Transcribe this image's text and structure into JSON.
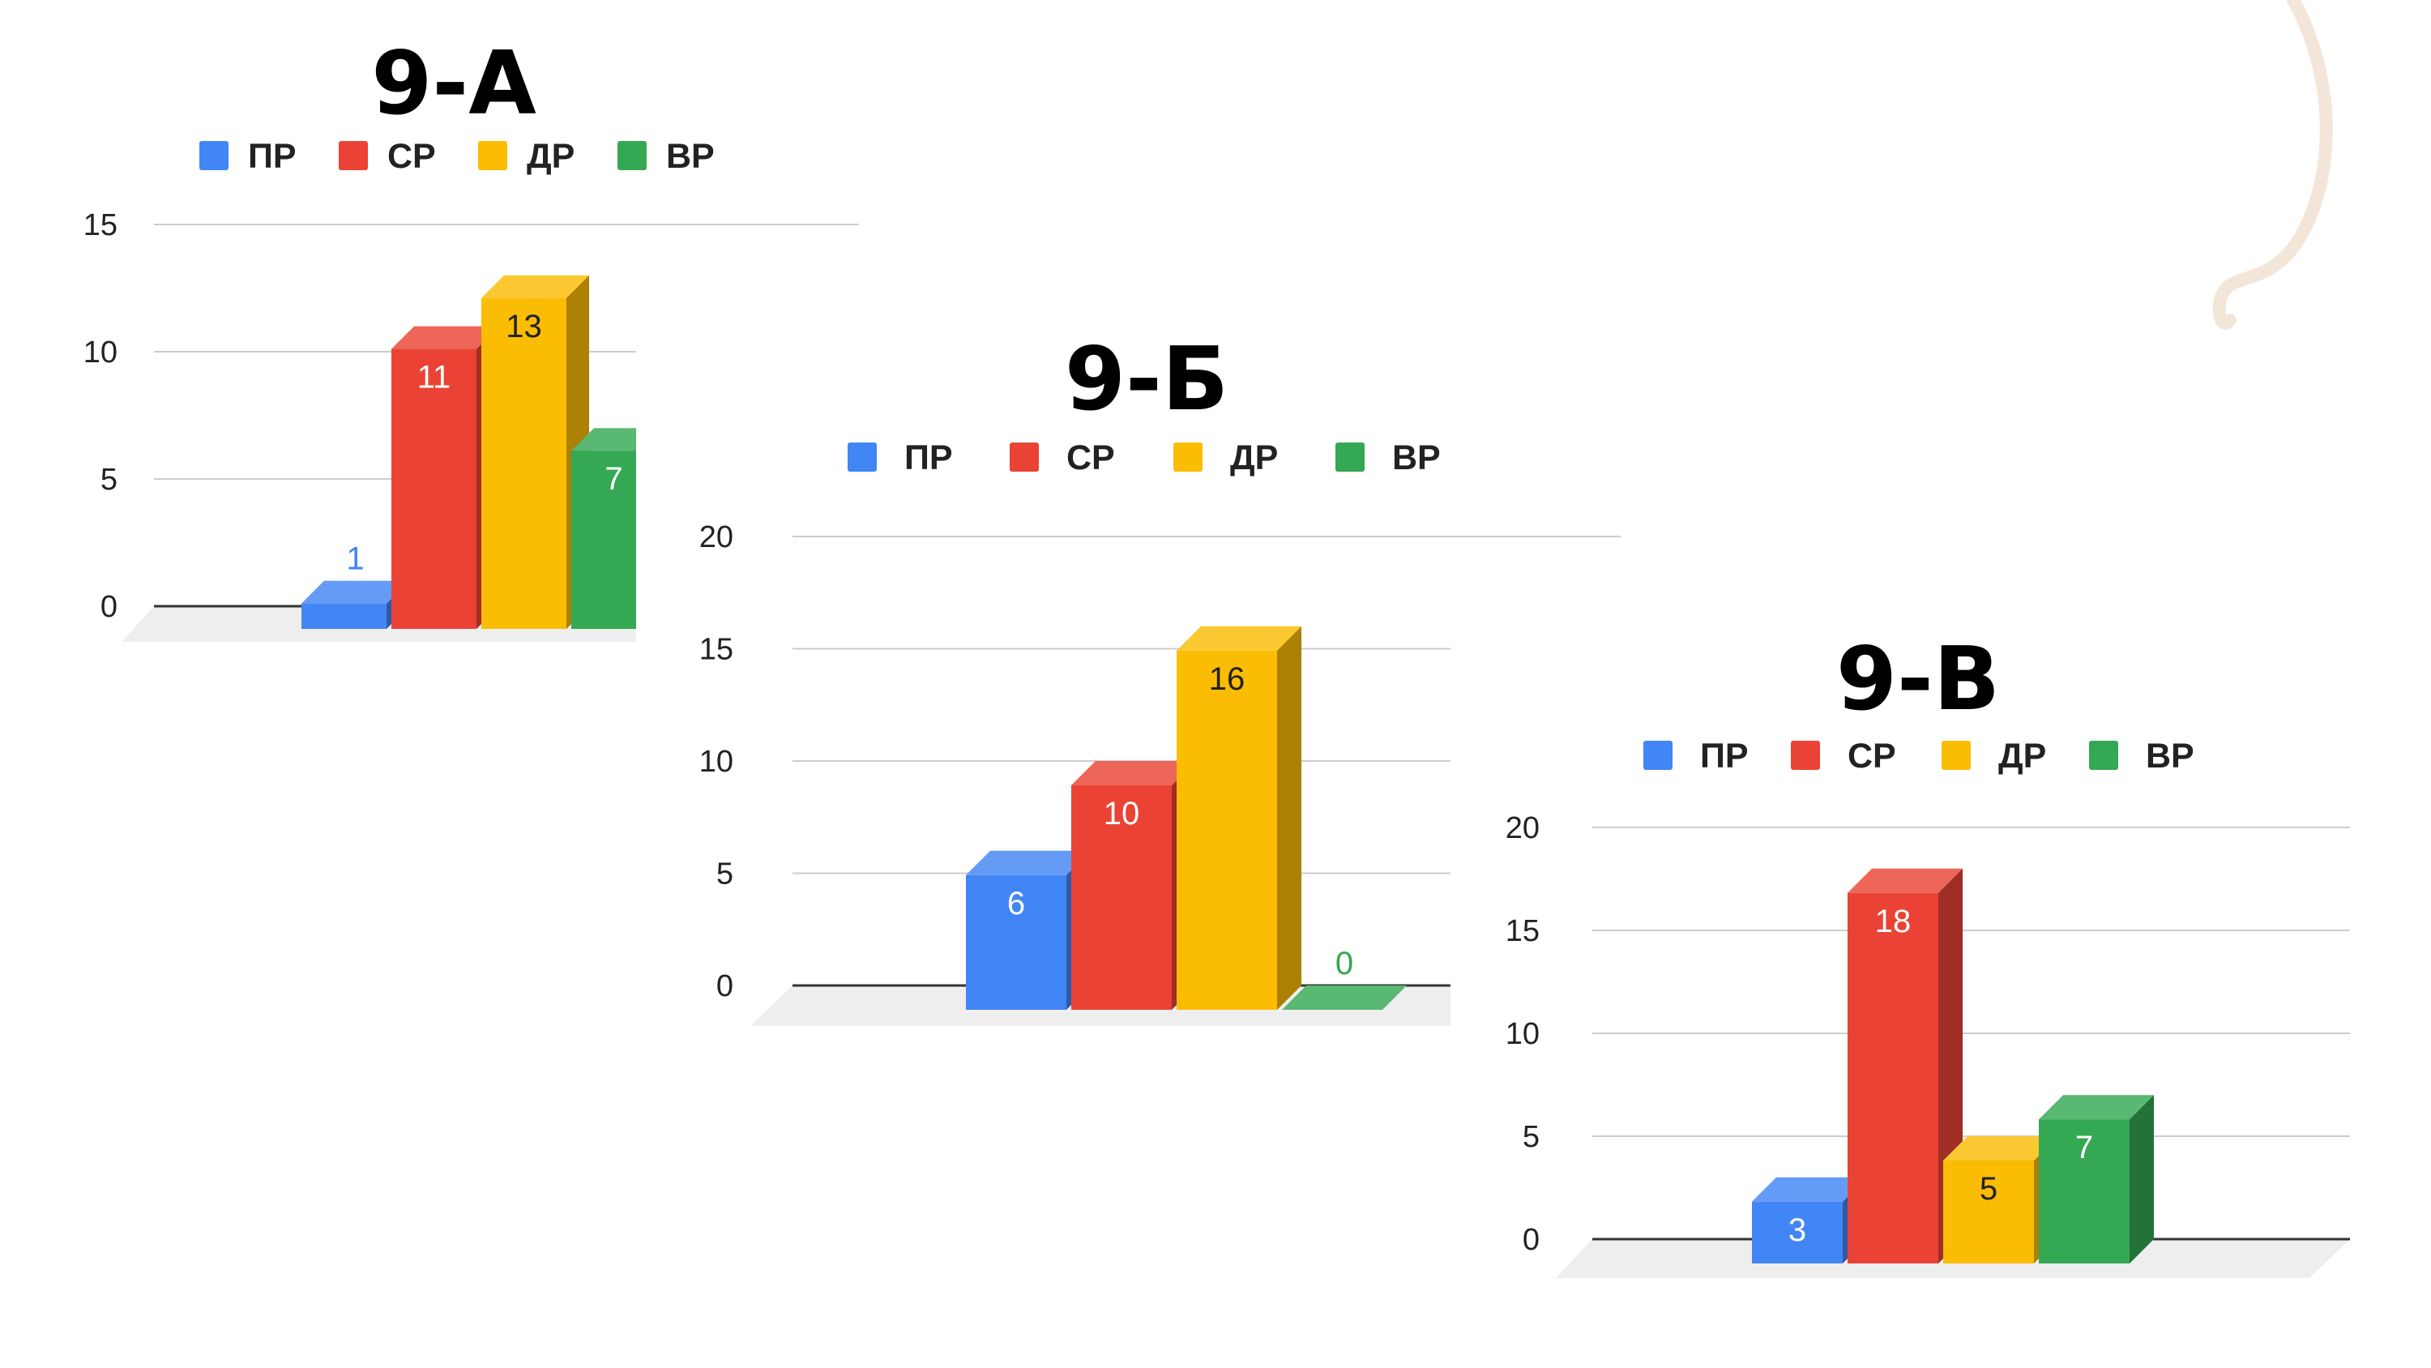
{
  "chart_data": [
    {
      "type": "bar",
      "title": "9-А",
      "categories": [
        ""
      ],
      "series": [
        {
          "name": "ПР",
          "values": [
            1
          ]
        },
        {
          "name": "СР",
          "values": [
            11
          ]
        },
        {
          "name": "ДР",
          "values": [
            13
          ]
        },
        {
          "name": "ВР",
          "values": [
            7
          ]
        }
      ],
      "yticks": [
        "0",
        "5",
        "10",
        "15"
      ],
      "ylim": [
        0,
        15
      ],
      "legend_position": "top",
      "grid": true,
      "style": "3d"
    },
    {
      "type": "bar",
      "title": "9-Б",
      "categories": [
        ""
      ],
      "series": [
        {
          "name": "ПР",
          "values": [
            6
          ]
        },
        {
          "name": "СР",
          "values": [
            10
          ]
        },
        {
          "name": "ДР",
          "values": [
            16
          ]
        },
        {
          "name": "ВР",
          "values": [
            0
          ]
        }
      ],
      "yticks": [
        "0",
        "5",
        "10",
        "15",
        "20"
      ],
      "ylim": [
        0,
        20
      ],
      "legend_position": "top",
      "grid": true,
      "style": "3d"
    },
    {
      "type": "bar",
      "title": "9-В",
      "categories": [
        ""
      ],
      "series": [
        {
          "name": "ПР",
          "values": [
            3
          ]
        },
        {
          "name": "СР",
          "values": [
            18
          ]
        },
        {
          "name": "ДР",
          "values": [
            5
          ]
        },
        {
          "name": "ВР",
          "values": [
            7
          ]
        }
      ],
      "yticks": [
        "0",
        "5",
        "10",
        "15",
        "20"
      ],
      "ylim": [
        0,
        20
      ],
      "legend_position": "top",
      "grid": true,
      "style": "3d"
    }
  ],
  "colors": {
    "ПР": "#4285F4",
    "СР": "#EA4335",
    "ДР": "#FBBC04",
    "ВР": "#34A853",
    "decoration": "#F3E6D8"
  }
}
